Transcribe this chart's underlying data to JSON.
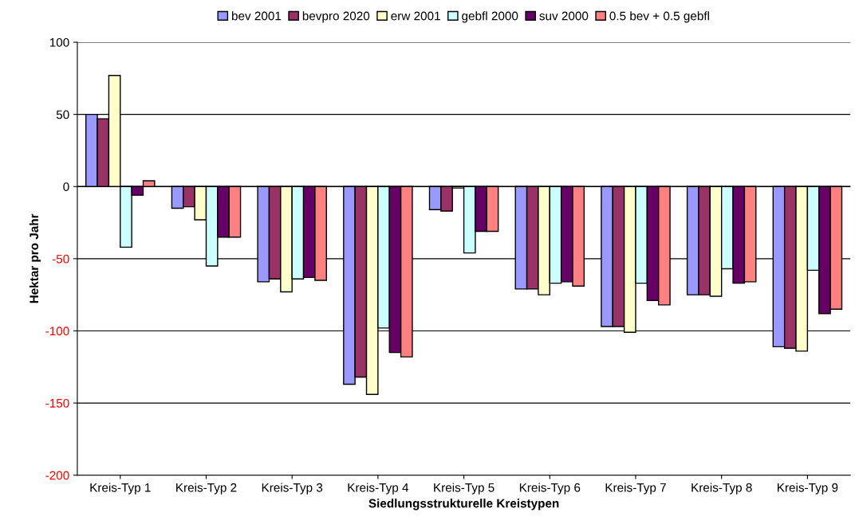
{
  "chart_data": {
    "type": "bar",
    "xlabel": "Siedlungsstrukturelle Kreistypen",
    "ylabel": "Hektar pro Jahr",
    "categories": [
      "Kreis-Typ 1",
      "Kreis-Typ 2",
      "Kreis-Typ 3",
      "Kreis-Typ 4",
      "Kreis-Typ 5",
      "Kreis-Typ 6",
      "Kreis-Typ 7",
      "Kreis-Typ 8",
      "Kreis-Typ 9"
    ],
    "series": [
      {
        "name": "bev 2001",
        "color": "#9999ff",
        "values": [
          50,
          -15,
          -66,
          -137,
          -16,
          -71,
          -97,
          -75,
          -111
        ]
      },
      {
        "name": "bevpro 2020",
        "color": "#993366",
        "values": [
          47,
          -14,
          -64,
          -132,
          -17,
          -71,
          -97,
          -75,
          -112
        ]
      },
      {
        "name": "erw 2001",
        "color": "#ffffcc",
        "values": [
          77,
          -23,
          -73,
          -144,
          -1,
          -75,
          -101,
          -76,
          -114
        ]
      },
      {
        "name": "gebfl 2000",
        "color": "#ccffff",
        "values": [
          -42,
          -55,
          -64,
          -98,
          -46,
          -67,
          -67,
          -57,
          -58
        ]
      },
      {
        "name": "suv 2000",
        "color": "#660066",
        "values": [
          -6,
          -35,
          -63,
          -115,
          -31,
          -66,
          -79,
          -67,
          -88
        ]
      },
      {
        "name": "0.5 bev + 0.5 gebfl",
        "color": "#ff8080",
        "values": [
          4,
          -35,
          -65,
          -118,
          -31,
          -69,
          -82,
          -66,
          -85
        ]
      }
    ],
    "ylim": [
      -200,
      100
    ],
    "yticks": [
      -200,
      -150,
      -100,
      -50,
      0,
      50,
      100
    ],
    "grid": "y",
    "legend": "top"
  }
}
